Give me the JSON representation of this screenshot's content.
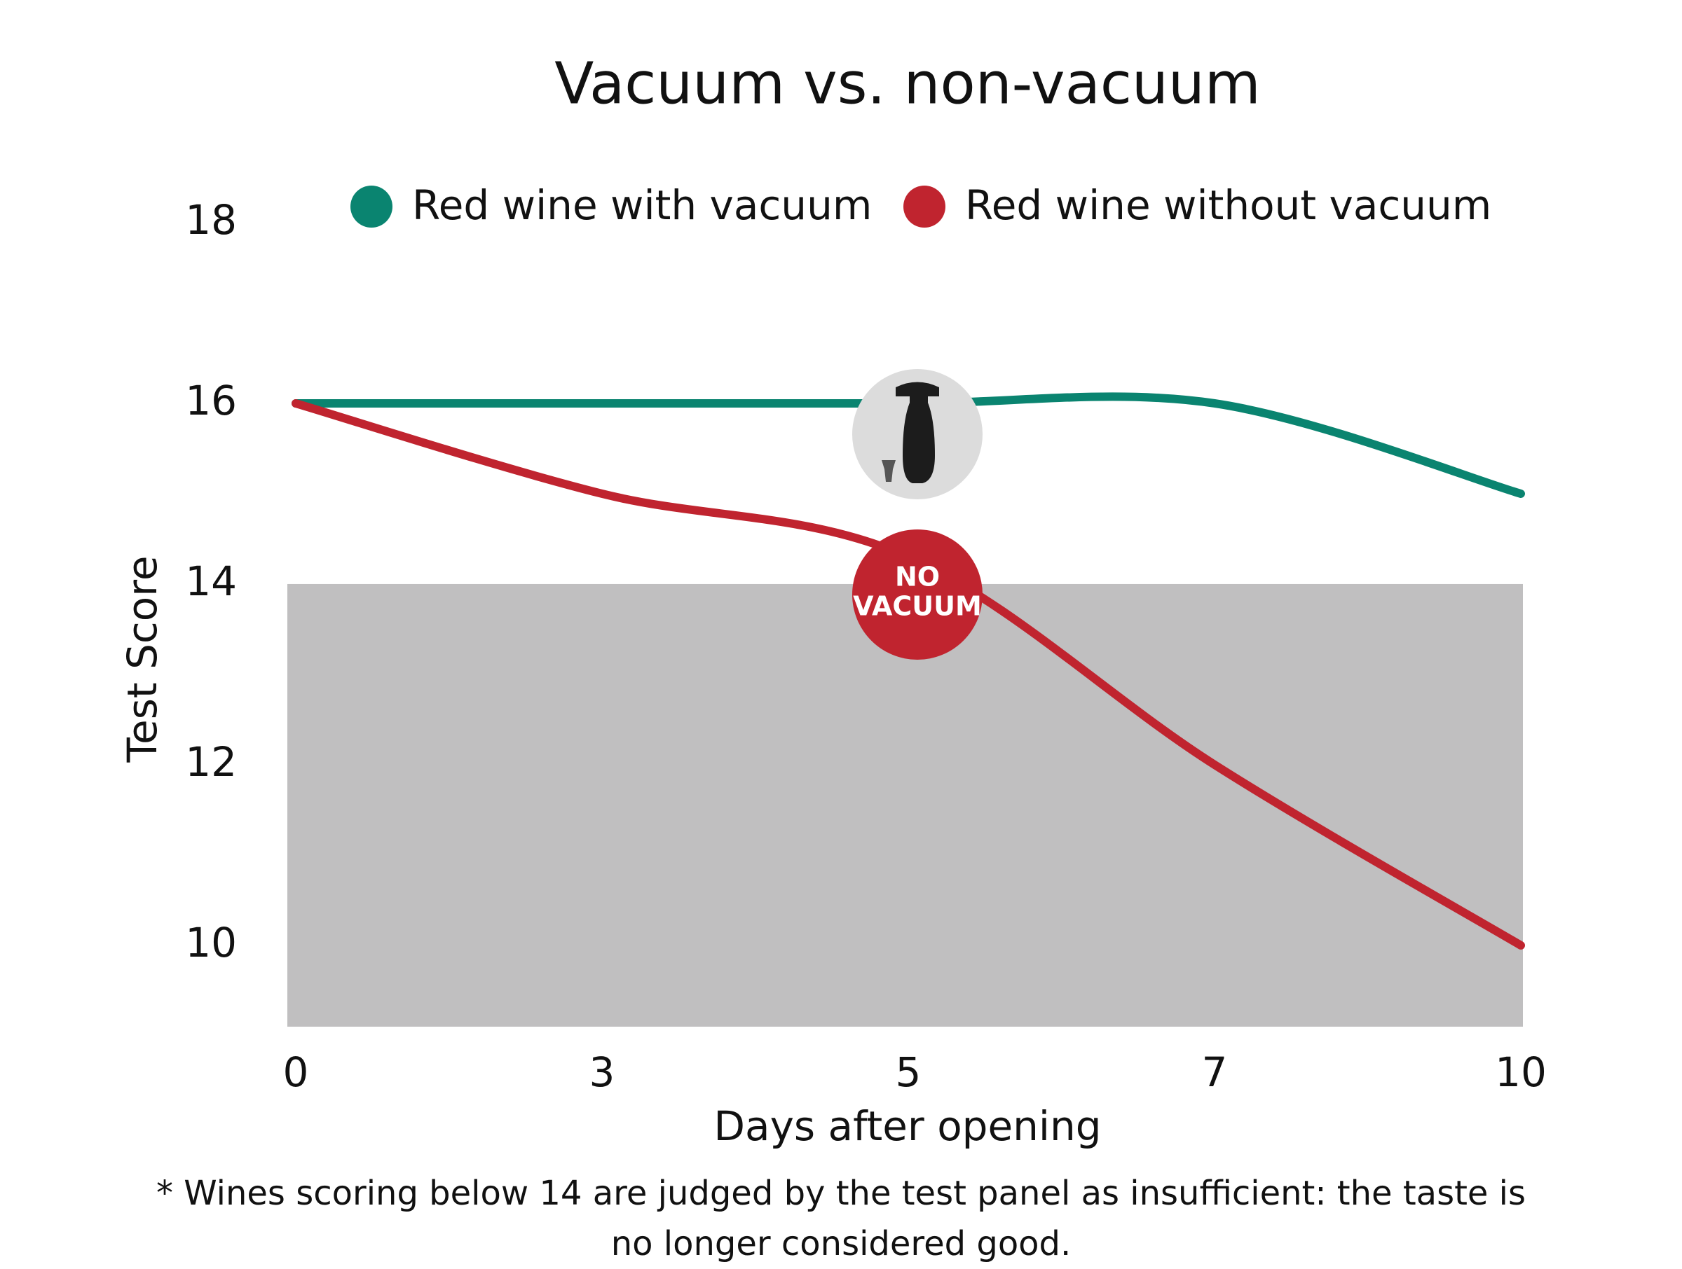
{
  "chart_data": {
    "type": "line",
    "title": "Vacuum vs. non-vacuum",
    "categories": [
      "0",
      "3",
      "5",
      "7",
      "10"
    ],
    "series": [
      {
        "name": "Red wine with vacuum",
        "color": "#0a8470",
        "values": [
          16,
          16,
          16,
          16,
          15
        ]
      },
      {
        "name": "Red wine without vacuum",
        "color": "#c0242f",
        "values": [
          16,
          15,
          14.3,
          12,
          10
        ]
      }
    ],
    "ylim": [
      9.1,
      18
    ],
    "yticks": [
      10,
      12,
      14,
      16,
      18
    ],
    "x_label": "Days after opening",
    "y_label": "Test Score",
    "threshold": 14,
    "threshold_color": "#c0bfc0",
    "annotation": [
      "NO",
      "VACUUM"
    ],
    "footnote": "* Wines scoring below 14 are judged by the test panel as insufficient: the taste is no longer considered good."
  }
}
